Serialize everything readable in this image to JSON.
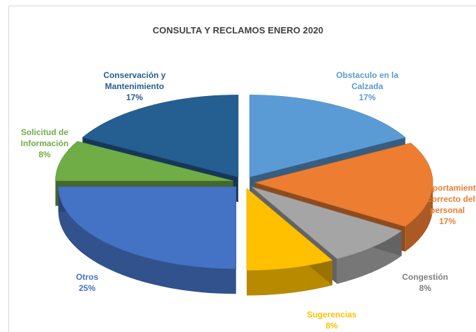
{
  "chart_data": {
    "type": "pie",
    "title": "CONSULTA Y RECLAMOS ENERO 2020",
    "slices": [
      {
        "label": "Obstaculo en la Calzada",
        "value": 17,
        "display": "17%",
        "color": "#5b9bd5",
        "label_color": "#5b9bd5"
      },
      {
        "label": "Comportamiento incorrecto del personal",
        "value": 17,
        "display": "17%",
        "color": "#ed7d31",
        "label_color": "#ed7d31"
      },
      {
        "label": "Congestión",
        "value": 8,
        "display": "8%",
        "color": "#a5a5a5",
        "label_color": "#7f7f7f"
      },
      {
        "label": "Sugerencias",
        "value": 8,
        "display": "8%",
        "color": "#ffc000",
        "label_color": "#ffc000"
      },
      {
        "label": "Otros",
        "value": 25,
        "display": "25%",
        "color": "#4472c4",
        "label_color": "#4472c4"
      },
      {
        "label": "Solicitud de Información",
        "value": 8,
        "display": "8%",
        "color": "#70ad47",
        "label_color": "#70ad47"
      },
      {
        "label": "Conservación y Mantenimiento",
        "value": 17,
        "display": "17%",
        "color": "#255e91",
        "label_color": "#255e91"
      }
    ],
    "exploded": true,
    "three_d": true,
    "legend": "none"
  }
}
